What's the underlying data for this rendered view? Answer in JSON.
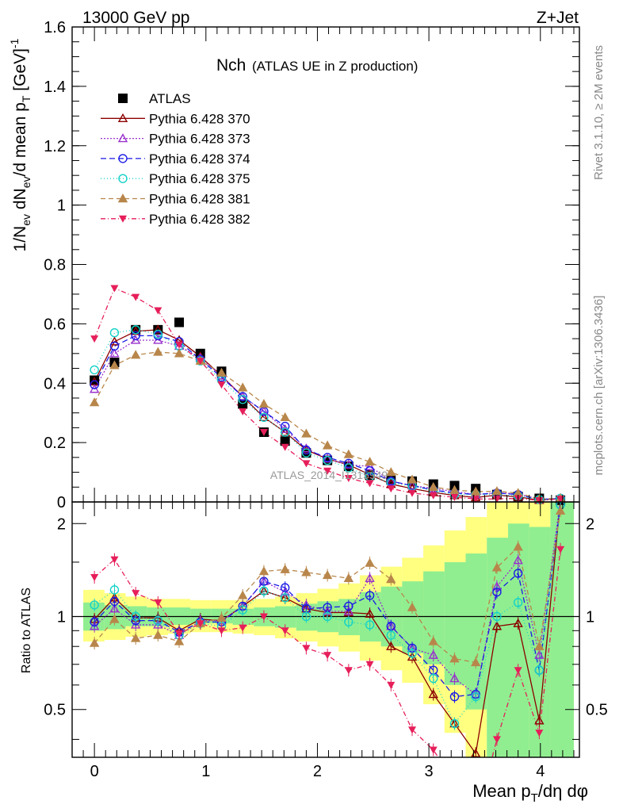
{
  "header": {
    "left": "13000 GeV pp",
    "right": "Z+Jet",
    "side_rivet": "Rivet 3.1.10, ≥ 2M events",
    "side_mcplots": "mcplots.cern.ch [arXiv:1306.3436]",
    "watermark": "ATLAS_2014_I1315949"
  },
  "colors": {
    "data": "#000000",
    "p370": "#8b0000",
    "p373": "#9932cc",
    "p374": "#1a1ae6",
    "p375": "#14d2c8",
    "p381": "#b8864b",
    "p382": "#e61e5a",
    "band_inner": "#90ee90",
    "band_outer": "#ffff80"
  },
  "chart_data": [
    {
      "type": "line",
      "title_main": "Nch",
      "title_sub": "(ATLAS UE in Z production)",
      "ylabel": "1/N_ev dN_ev/d mean p_T [GeV]^-1",
      "xlim": [
        -0.2,
        4.35
      ],
      "ylim": [
        0,
        1.6
      ],
      "yticks": [
        0,
        0.2,
        0.4,
        0.6,
        0.8,
        1,
        1.2,
        1.4,
        1.6
      ],
      "ytick_labels": [
        "0",
        "0.2",
        "0.4",
        "0.6",
        "0.8",
        "1",
        "1.2",
        "1.4",
        "1.6"
      ],
      "legend": [
        "ATLAS",
        "Pythia 6.428 370",
        "Pythia 6.428 373",
        "Pythia 6.428 374",
        "Pythia 6.428 375",
        "Pythia 6.428 381",
        "Pythia 6.428 382"
      ],
      "x": [
        0.0,
        0.18,
        0.37,
        0.57,
        0.76,
        0.95,
        1.14,
        1.33,
        1.52,
        1.71,
        1.9,
        2.09,
        2.28,
        2.47,
        2.66,
        2.85,
        3.04,
        3.23,
        3.42,
        3.61,
        3.8,
        3.99,
        4.18
      ],
      "series": [
        {
          "name": "ATLAS",
          "key": "data",
          "marker": "square",
          "dash": "",
          "values": [
            0.41,
            0.47,
            0.58,
            0.58,
            0.605,
            0.5,
            0.44,
            0.33,
            0.235,
            0.205,
            0.165,
            0.14,
            0.12,
            0.09,
            0.075,
            0.07,
            0.06,
            0.055,
            0.045,
            0.025,
            0.018,
            0.012,
            0.006
          ]
        },
        {
          "name": "Pythia 6.428 370",
          "key": "p370",
          "marker": "tri-up-open",
          "dash": "",
          "values": [
            0.405,
            0.54,
            0.575,
            0.58,
            0.545,
            0.49,
            0.425,
            0.355,
            0.285,
            0.235,
            0.175,
            0.145,
            0.125,
            0.092,
            0.06,
            0.045,
            0.032,
            0.022,
            0.015,
            0.023,
            0.017,
            0.006,
            0.012
          ]
        },
        {
          "name": "Pythia 6.428 373",
          "key": "p373",
          "marker": "tri-up-open",
          "dash": "2,2",
          "values": [
            0.38,
            0.5,
            0.545,
            0.545,
            0.525,
            0.485,
            0.425,
            0.355,
            0.305,
            0.245,
            0.18,
            0.145,
            0.125,
            0.12,
            0.07,
            0.055,
            0.045,
            0.035,
            0.025,
            0.031,
            0.027,
            0.009,
            0.013
          ]
        },
        {
          "name": "Pythia 6.428 374",
          "key": "p374",
          "marker": "circle-open",
          "dash": "7,4",
          "values": [
            0.395,
            0.525,
            0.56,
            0.56,
            0.54,
            0.48,
            0.42,
            0.355,
            0.305,
            0.255,
            0.175,
            0.15,
            0.13,
            0.105,
            0.07,
            0.055,
            0.04,
            0.03,
            0.025,
            0.03,
            0.025,
            0.008,
            0.012
          ]
        },
        {
          "name": "Pythia 6.428 375",
          "key": "p375",
          "marker": "circle-open",
          "dash": "1,3",
          "values": [
            0.445,
            0.57,
            0.58,
            0.565,
            0.525,
            0.475,
            0.41,
            0.345,
            0.285,
            0.235,
            0.165,
            0.14,
            0.115,
            0.085,
            0.065,
            0.053,
            0.038,
            0.025,
            0.025,
            0.025,
            0.02,
            0.008,
            0.012
          ]
        },
        {
          "name": "Pythia 6.428 381",
          "key": "p381",
          "marker": "tri-up-filled",
          "dash": "6,4",
          "values": [
            0.335,
            0.46,
            0.495,
            0.505,
            0.5,
            0.475,
            0.435,
            0.385,
            0.33,
            0.285,
            0.23,
            0.19,
            0.16,
            0.135,
            0.1,
            0.075,
            0.05,
            0.04,
            0.035,
            0.036,
            0.03,
            0.01,
            0.012
          ]
        },
        {
          "name": "Pythia 6.428 382",
          "key": "p382",
          "marker": "tri-down-filled",
          "dash": "6,3,1,3",
          "values": [
            0.55,
            0.72,
            0.69,
            0.645,
            0.53,
            0.475,
            0.395,
            0.305,
            0.235,
            0.185,
            0.13,
            0.105,
            0.08,
            0.063,
            0.045,
            0.03,
            0.022,
            0.016,
            0.01,
            0.01,
            0.012,
            0.005,
            0.01
          ]
        }
      ]
    },
    {
      "type": "line",
      "ylabel": "Ratio to ATLAS",
      "xlabel": "Mean p_T/dη dφ",
      "xlim": [
        -0.2,
        4.35
      ],
      "ylim": [
        0.35,
        2.35
      ],
      "log_y": true,
      "yticks": [
        0.5,
        1,
        2
      ],
      "ytick_labels": [
        "0.5",
        "1",
        "2"
      ],
      "xticks": [
        0,
        1,
        2,
        3,
        4
      ],
      "xtick_labels": [
        "0",
        "1",
        "2",
        "3",
        "4"
      ],
      "reference": 1,
      "band_edges": [
        -0.1,
        0.09,
        0.28,
        0.47,
        0.66,
        0.86,
        1.05,
        1.24,
        1.43,
        1.62,
        1.81,
        2.0,
        2.19,
        2.38,
        2.57,
        2.76,
        2.95,
        3.14,
        3.33,
        3.52,
        3.71,
        3.9,
        4.09,
        4.3
      ],
      "band_inner": [
        [
          0.9,
          1.11
        ],
        [
          0.91,
          1.09
        ],
        [
          0.93,
          1.08
        ],
        [
          0.93,
          1.07
        ],
        [
          0.94,
          1.07
        ],
        [
          0.95,
          1.06
        ],
        [
          0.95,
          1.06
        ],
        [
          0.94,
          1.06
        ],
        [
          0.93,
          1.07
        ],
        [
          0.92,
          1.08
        ],
        [
          0.9,
          1.1
        ],
        [
          0.89,
          1.12
        ],
        [
          0.87,
          1.14
        ],
        [
          0.83,
          1.2
        ],
        [
          0.8,
          1.25
        ],
        [
          0.76,
          1.3
        ],
        [
          0.7,
          1.4
        ],
        [
          0.6,
          1.5
        ],
        [
          0.5,
          1.6
        ],
        [
          0.35,
          1.8
        ],
        [
          0.35,
          2.0
        ],
        [
          0.35,
          1.95
        ],
        [
          0.35,
          2.35
        ]
      ],
      "band_outer": [
        [
          0.83,
          1.22
        ],
        [
          0.84,
          1.19
        ],
        [
          0.86,
          1.16
        ],
        [
          0.87,
          1.14
        ],
        [
          0.88,
          1.14
        ],
        [
          0.89,
          1.13
        ],
        [
          0.89,
          1.13
        ],
        [
          0.88,
          1.13
        ],
        [
          0.87,
          1.14
        ],
        [
          0.85,
          1.16
        ],
        [
          0.83,
          1.19
        ],
        [
          0.8,
          1.23
        ],
        [
          0.77,
          1.28
        ],
        [
          0.72,
          1.36
        ],
        [
          0.67,
          1.45
        ],
        [
          0.61,
          1.55
        ],
        [
          0.52,
          1.7
        ],
        [
          0.42,
          1.9
        ],
        [
          0.35,
          2.1
        ],
        [
          0.35,
          2.35
        ],
        [
          0.35,
          2.35
        ],
        [
          0.35,
          2.35
        ],
        [
          0.35,
          2.35
        ]
      ],
      "series": [
        {
          "name": "Pythia 6.428 370",
          "key": "p370",
          "marker": "tri-up-open",
          "dash": "",
          "values": [
            0.98,
            1.15,
            0.99,
            0.99,
            0.9,
            0.98,
            0.97,
            1.08,
            1.21,
            1.15,
            1.06,
            1.03,
            1.03,
            1.02,
            0.8,
            0.74,
            0.56,
            0.45,
            0.36,
            0.93,
            0.95,
            0.46,
            2.4
          ]
        },
        {
          "name": "Pythia 6.428 373",
          "key": "p373",
          "marker": "tri-up-open",
          "dash": "2,2",
          "values": [
            0.93,
            1.06,
            0.94,
            0.94,
            0.87,
            0.97,
            0.97,
            1.08,
            1.3,
            1.2,
            1.09,
            1.04,
            1.04,
            1.33,
            0.93,
            0.79,
            0.75,
            0.63,
            0.56,
            1.25,
            1.52,
            0.75,
            2.4
          ]
        },
        {
          "name": "Pythia 6.428 374",
          "key": "p374",
          "marker": "circle-open",
          "dash": "7,4",
          "values": [
            0.96,
            1.12,
            0.97,
            0.97,
            0.89,
            0.96,
            0.96,
            1.08,
            1.3,
            1.24,
            1.06,
            1.07,
            1.08,
            1.17,
            0.93,
            0.79,
            0.67,
            0.55,
            0.56,
            1.2,
            1.38,
            0.67,
            2.3
          ]
        },
        {
          "name": "Pythia 6.428 375",
          "key": "p375",
          "marker": "circle-open",
          "dash": "1,3",
          "values": [
            1.09,
            1.22,
            1.0,
            0.97,
            0.87,
            0.95,
            0.93,
            1.05,
            1.21,
            1.15,
            1.0,
            1.0,
            0.96,
            0.94,
            0.87,
            0.76,
            0.63,
            0.45,
            0.55,
            1.0,
            1.11,
            0.67,
            2.3
          ]
        },
        {
          "name": "Pythia 6.428 381",
          "key": "p381",
          "marker": "tri-up-filled",
          "dash": "6,4",
          "values": [
            0.82,
            0.98,
            0.85,
            0.87,
            0.83,
            0.95,
            0.99,
            1.17,
            1.4,
            1.42,
            1.39,
            1.36,
            1.33,
            1.49,
            1.32,
            1.07,
            0.83,
            0.73,
            0.71,
            1.44,
            1.68,
            0.8,
            2.2
          ]
        },
        {
          "name": "Pythia 6.428 382",
          "key": "p382",
          "marker": "tri-down-filled",
          "dash": "6,3,1,3",
          "values": [
            1.34,
            1.53,
            1.19,
            1.11,
            0.88,
            0.95,
            0.9,
            0.92,
            1.0,
            0.9,
            0.79,
            0.75,
            0.67,
            0.7,
            0.6,
            0.43,
            0.37,
            0.29,
            0.22,
            0.4,
            0.67,
            0.42,
            1.65
          ]
        }
      ]
    }
  ]
}
